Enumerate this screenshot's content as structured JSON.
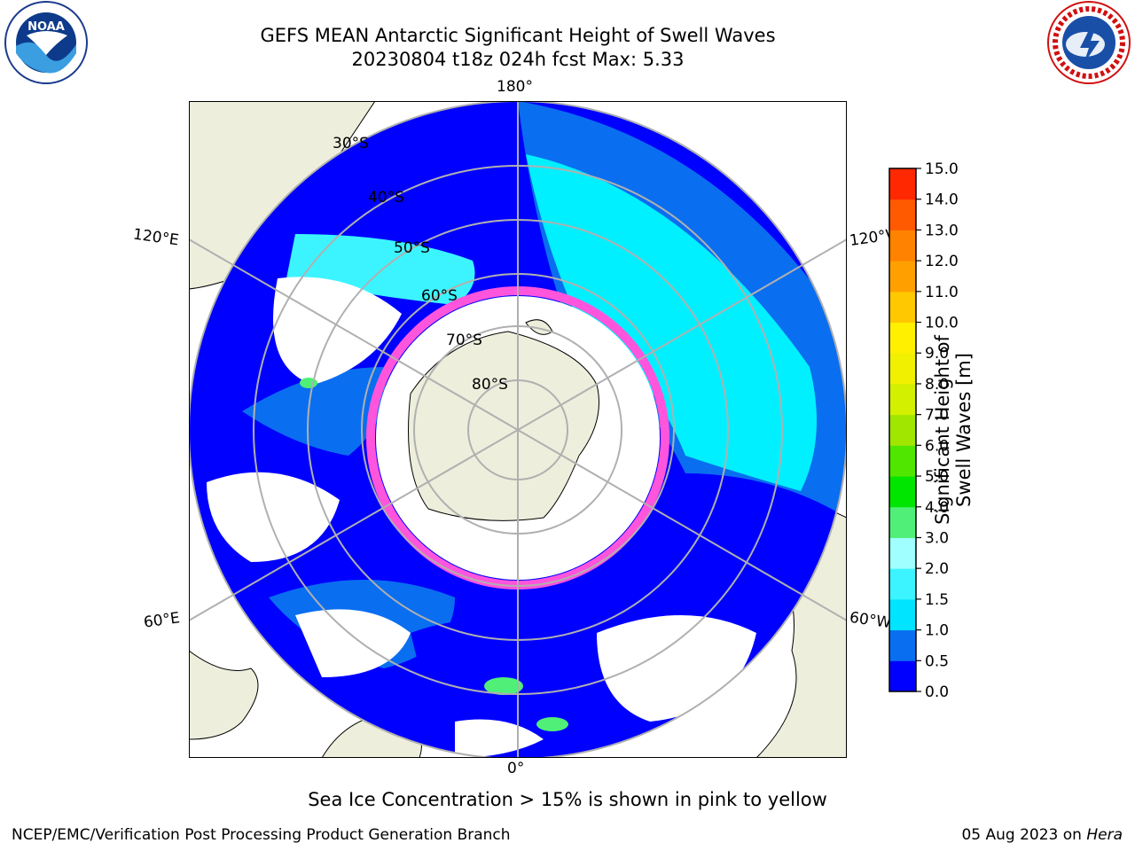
{
  "header": {
    "title_line1": "GEFS MEAN Antarctic Significant Height of Swell Waves",
    "title_line2": "20230804 t18z 024h fcst   Max: 5.33"
  },
  "map": {
    "meridian_labels": {
      "top": "180°",
      "left_upper": "120°E",
      "right_upper": "120°W",
      "left_lower": "60°E",
      "right_lower": "60°W",
      "bottom": "0°"
    },
    "latitude_labels": [
      "30°S",
      "40°S",
      "50°S",
      "60°S",
      "70°S",
      "80°S"
    ],
    "colors": {
      "ocean_low": "#0000ff",
      "ocean_mid": "#0a6ef0",
      "ocean_high": "#00f0ff",
      "land": "#eeeedc",
      "sea_ice": "#ff55dd",
      "gridline": "#b0b0b0"
    }
  },
  "colorbar": {
    "title": "Significant Height of Swell Waves [m]",
    "ticks": [
      "0.0",
      "0.5",
      "1.0",
      "1.5",
      "2.0",
      "3.0",
      "4.0",
      "5.0",
      "6.0",
      "7.0",
      "8.0",
      "9.0",
      "10.0",
      "11.0",
      "12.0",
      "13.0",
      "14.0",
      "15.0"
    ],
    "colors": [
      "#0000ff",
      "#0a6ef0",
      "#00e4ff",
      "#3cf4ff",
      "#a0ffff",
      "#50f078",
      "#00e600",
      "#50e600",
      "#a0e600",
      "#d2f000",
      "#f0f000",
      "#fff000",
      "#ffc800",
      "#ffa000",
      "#ff8200",
      "#ff5a00",
      "#ff2800"
    ]
  },
  "note": "Sea Ice Concentration > 15% is shown in pink to yellow",
  "footer": {
    "left": "NCEP/EMC/Verification Post Processing Product Generation Branch",
    "right_prefix": "05 Aug 2023 on ",
    "right_machine": "Hera"
  }
}
